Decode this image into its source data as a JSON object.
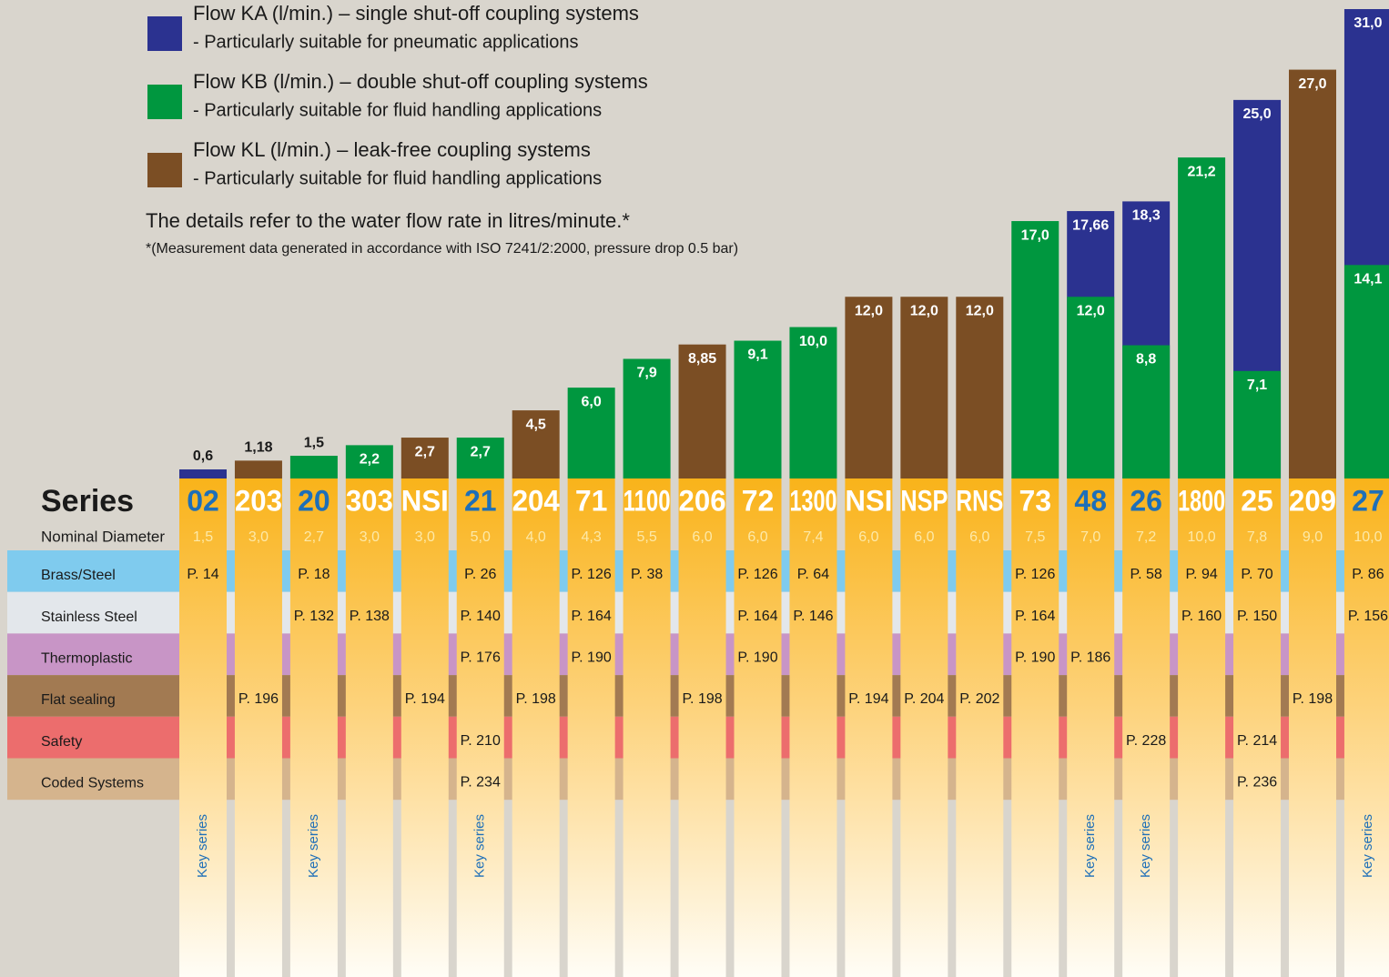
{
  "legend": [
    {
      "text": "Flow KA (l/min.) – single shut-off coupling systems",
      "sub": "- Particularly suitable for pneumatic applications",
      "color": "#2b3290"
    },
    {
      "text": "Flow KB (l/min.) – double shut-off coupling systems",
      "sub": "- Particularly suitable for fluid handling applications",
      "color": "#00973f"
    },
    {
      "text": "Flow KL (l/min.) – leak-free coupling systems",
      "sub": "- Particularly suitable for fluid handling applications",
      "color": "#7b4e24"
    }
  ],
  "note": "The details refer to the water flow rate in litres/minute.*",
  "footnote": "*(Measurement data generated in accordance with ISO 7241/2:2000, pressure drop 0.5 bar)",
  "series_label": "Series",
  "diameter_label": "Nominal Diameter",
  "rows": [
    {
      "name": "Brass/Steel",
      "color": "#7fcbee"
    },
    {
      "name": "Stainless Steel",
      "color": "#e3e7eb"
    },
    {
      "name": "Thermoplastic",
      "color": "#c895c6"
    },
    {
      "name": "Flat sealing",
      "color": "#a27a52"
    },
    {
      "name": "Safety",
      "color": "#ec6d6d"
    },
    {
      "name": "Coded Systems",
      "color": "#d5b48d"
    }
  ],
  "columns": [
    {
      "series": "02",
      "diameter": "1,5",
      "KA": 0.6,
      "KA_label": "0,6",
      "pages": [
        "P. 14",
        null,
        null,
        null,
        null,
        null
      ],
      "key": "Key series"
    },
    {
      "series": "203",
      "diameter": "3,0",
      "KL": 1.18,
      "KL_label": "1,18",
      "pages": [
        null,
        null,
        null,
        "P. 196",
        null,
        null
      ]
    },
    {
      "series": "20",
      "diameter": "2,7",
      "KB": 1.5,
      "KB_label": "1,5",
      "pages": [
        "P. 18",
        "P. 132",
        null,
        null,
        null,
        null
      ],
      "key": "Key series"
    },
    {
      "series": "303",
      "diameter": "3,0",
      "KB": 2.2,
      "KB_label": "2,2",
      "pages": [
        null,
        "P. 138",
        null,
        null,
        null,
        null
      ]
    },
    {
      "series": "NSI",
      "diameter": "3,0",
      "KL": 2.7,
      "KL_label": "2,7",
      "pages": [
        null,
        null,
        null,
        "P. 194",
        null,
        null
      ]
    },
    {
      "series": "21",
      "diameter": "5,0",
      "KB": 2.7,
      "KB_label": "2,7",
      "pages": [
        "P. 26",
        "P. 140",
        "P. 176",
        null,
        "P. 210",
        "P. 234"
      ],
      "key": "Key series"
    },
    {
      "series": "204",
      "diameter": "4,0",
      "KL": 4.5,
      "KL_label": "4,5",
      "pages": [
        null,
        null,
        null,
        "P. 198",
        null,
        null
      ]
    },
    {
      "series": "71",
      "diameter": "4,3",
      "KB": 6.0,
      "KB_label": "6,0",
      "pages": [
        "P. 126",
        "P. 164",
        "P. 190",
        null,
        null,
        null
      ]
    },
    {
      "series": "1100",
      "diameter": "5,5",
      "KB": 7.9,
      "KB_label": "7,9",
      "pages": [
        "P. 38",
        null,
        null,
        null,
        null,
        null
      ]
    },
    {
      "series": "206",
      "diameter": "6,0",
      "KL": 8.85,
      "KL_label": "8,85",
      "pages": [
        null,
        null,
        null,
        "P. 198",
        null,
        null
      ]
    },
    {
      "series": "72",
      "diameter": "6,0",
      "KB": 9.1,
      "KB_label": "9,1",
      "pages": [
        "P. 126",
        "P. 164",
        "P. 190",
        null,
        null,
        null
      ]
    },
    {
      "series": "1300",
      "diameter": "7,4",
      "KB": 10.0,
      "KB_label": "10,0",
      "pages": [
        "P. 64",
        "P. 146",
        null,
        null,
        null,
        null
      ]
    },
    {
      "series": "NSI",
      "diameter": "6,0",
      "KL": 12.0,
      "KL_label": "12,0",
      "pages": [
        null,
        null,
        null,
        "P. 194",
        null,
        null
      ]
    },
    {
      "series": "NSP",
      "diameter": "6,0",
      "KL": 12.0,
      "KL_label": "12,0",
      "pages": [
        null,
        null,
        null,
        "P. 204",
        null,
        null
      ]
    },
    {
      "series": "RNS",
      "diameter": "6,0",
      "KL": 12.0,
      "KL_label": "12,0",
      "pages": [
        null,
        null,
        null,
        "P. 202",
        null,
        null
      ]
    },
    {
      "series": "73",
      "diameter": "7,5",
      "KB": 17.0,
      "KB_label": "17,0",
      "pages": [
        "P. 126",
        "P. 164",
        "P. 190",
        null,
        null,
        null
      ]
    },
    {
      "series": "48",
      "diameter": "7,0",
      "KA": 17.66,
      "KA_label": "17,66",
      "KB": 12.0,
      "KB_label": "12,0",
      "pages": [
        null,
        null,
        "P. 186",
        null,
        null,
        null
      ],
      "key": "Key series"
    },
    {
      "series": "26",
      "diameter": "7,2",
      "KA": 18.3,
      "KA_label": "18,3",
      "KB": 8.8,
      "KB_label": "8,8",
      "pages": [
        "P. 58",
        null,
        null,
        null,
        "P. 228",
        null
      ],
      "key": "Key series"
    },
    {
      "series": "1800",
      "diameter": "10,0",
      "KB": 21.2,
      "KB_label": "21,2",
      "pages": [
        "P. 94",
        "P. 160",
        null,
        null,
        null,
        null
      ]
    },
    {
      "series": "25",
      "diameter": "7,8",
      "KA": 25.0,
      "KA_label": "25,0",
      "KB": 7.1,
      "KB_label": "7,1",
      "pages": [
        "P. 70",
        "P. 150",
        null,
        null,
        "P. 214",
        "P. 236"
      ]
    },
    {
      "series": "209",
      "diameter": "9,0",
      "KL": 27.0,
      "KL_label": "27,0",
      "pages": [
        null,
        null,
        null,
        "P. 198",
        null,
        null
      ]
    },
    {
      "series": "27",
      "diameter": "10,0",
      "KA": 31.0,
      "KA_label": "31,0",
      "KB": 14.1,
      "KB_label": "14,1",
      "pages": [
        "P. 86",
        "P. 156",
        null,
        null,
        null,
        null
      ],
      "key": "Key series"
    }
  ]
}
